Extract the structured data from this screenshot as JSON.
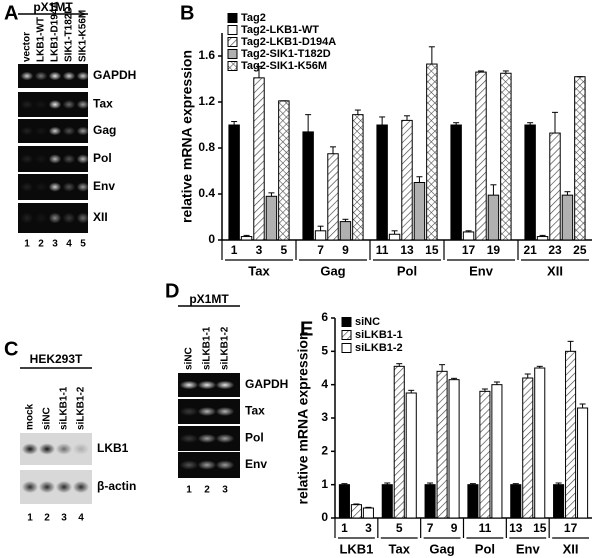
{
  "gels": [
    {
      "letter": "A",
      "header": "pX1MT",
      "lanes": [
        "vector",
        "LKB1-WT",
        "LKB1-D194A",
        "SIK1-T182D",
        "SIK1-K56M"
      ],
      "rows": [
        "GAPDH",
        "Tax",
        "Gag",
        "Pol",
        "Env",
        "XII"
      ],
      "lane_numbers": [
        1,
        2,
        3,
        4,
        5
      ]
    },
    {
      "letter": "C",
      "header": "HEK293T",
      "lanes": [
        "mock",
        "siNC",
        "siLKB1-1",
        "siLKB1-2"
      ],
      "rows": [
        "LKB1",
        "β-actin"
      ],
      "lane_numbers": [
        1,
        2,
        3,
        4
      ]
    },
    {
      "letter": "D",
      "header": "pX1MT",
      "lanes": [
        "siNC",
        "siLKB1-1",
        "siLKB1-2"
      ],
      "rows": [
        "GAPDH",
        "Tax",
        "Pol",
        "Env"
      ],
      "lane_numbers": [
        1,
        2,
        3
      ]
    }
  ],
  "chart_data": [
    {
      "type": "bar",
      "letter": "B",
      "ylabel": "relative mRNA expression",
      "categories": [
        "Tax",
        "Gag",
        "Pol",
        "Env",
        "XII"
      ],
      "series": [
        {
          "name": "Tag2",
          "color": "#000000",
          "pattern": "solid",
          "values": [
            1.0,
            0.94,
            1.0,
            1.0,
            1.0
          ],
          "errors": [
            0.03,
            0.15,
            0.07,
            0.02,
            0.02
          ]
        },
        {
          "name": "Tag2-LKB1-WT",
          "color": "#ffffff",
          "pattern": "solid",
          "values": [
            0.03,
            0.08,
            0.05,
            0.07,
            0.03
          ],
          "errors": [
            0.01,
            0.04,
            0.03,
            0.01,
            0.01
          ]
        },
        {
          "name": "Tag2-LKB1-D194A",
          "color": "#555555",
          "pattern": "hatch",
          "values": [
            1.41,
            0.75,
            1.04,
            1.46,
            0.93
          ],
          "errors": [
            0.1,
            0.06,
            0.04,
            0.01,
            0.18
          ]
        },
        {
          "name": "Tag2-SIK1-T182D",
          "color": "#b0b0b0",
          "pattern": "solid",
          "values": [
            0.38,
            0.16,
            0.5,
            0.39,
            0.39
          ],
          "errors": [
            0.03,
            0.02,
            0.05,
            0.09,
            0.03
          ]
        },
        {
          "name": "Tag2-SIK1-K56M",
          "color": "#555555",
          "pattern": "crosshatch",
          "values": [
            1.21,
            1.09,
            1.53,
            1.45,
            1.42
          ],
          "errors": [
            0.0,
            0.04,
            0.15,
            0.02,
            0.0
          ]
        }
      ],
      "bar_labels": [
        1,
        null,
        3,
        null,
        5,
        null,
        7,
        null,
        9,
        null,
        11,
        null,
        13,
        null,
        15,
        null,
        17,
        null,
        19,
        null,
        21,
        null,
        23,
        null,
        25
      ],
      "ylim": [
        0,
        1.8
      ],
      "yticks": [
        0,
        0.4,
        0.8,
        1.2,
        1.6
      ],
      "legend": "upper-left"
    },
    {
      "type": "bar",
      "letter": "E",
      "ylabel": "relative mRNA expression",
      "categories": [
        "LKB1",
        "Tax",
        "Gag",
        "Pol",
        "Env",
        "XII"
      ],
      "series": [
        {
          "name": "siNC",
          "color": "#000000",
          "pattern": "solid",
          "values": [
            1.0,
            1.0,
            1.0,
            1.0,
            1.0,
            1.0
          ],
          "errors": [
            0.03,
            0.05,
            0.05,
            0.03,
            0.03,
            0.05
          ]
        },
        {
          "name": "siLKB1-1",
          "color": "#555555",
          "pattern": "hatch",
          "values": [
            0.4,
            4.55,
            4.4,
            3.8,
            4.2,
            5.0
          ],
          "errors": [
            0.02,
            0.08,
            0.2,
            0.07,
            0.12,
            0.3
          ]
        },
        {
          "name": "siLKB1-2",
          "color": "#ffffff",
          "pattern": "solid",
          "values": [
            0.3,
            3.75,
            4.15,
            4.0,
            4.5,
            3.3
          ],
          "errors": [
            0.02,
            0.08,
            0.04,
            0.08,
            0.05,
            0.12
          ]
        }
      ],
      "bar_labels": [
        1,
        null,
        3,
        null,
        5,
        null,
        7,
        null,
        9,
        null,
        11,
        null,
        13,
        null,
        15,
        null,
        17,
        null
      ],
      "ylim": [
        0,
        6
      ],
      "yticks": [
        0,
        1,
        2,
        3,
        4,
        5,
        6
      ],
      "legend": "upper-left"
    }
  ]
}
